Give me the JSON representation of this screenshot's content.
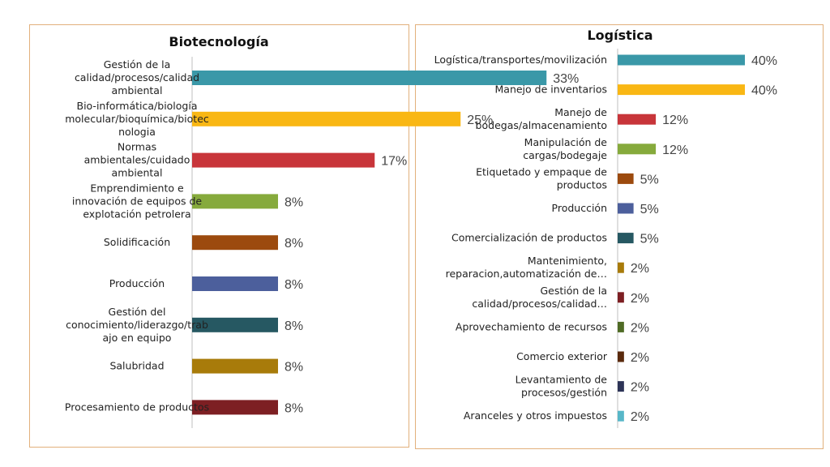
{
  "chart_data": [
    {
      "type": "bar",
      "orientation": "horizontal",
      "title": "Biotecnología",
      "categories": [
        [
          "Gestión de la",
          "calidad/procesos/calidad",
          "ambiental"
        ],
        [
          "Bio-informática/biología",
          "molecular/bioquímica/biotec",
          "nologia"
        ],
        [
          "Normas",
          "ambientales/cuidado",
          "ambiental"
        ],
        [
          "Emprendimiento e",
          "innovación de equipos de",
          "explotación petrolera"
        ],
        [
          "Solidificación"
        ],
        [
          "Producción"
        ],
        [
          "Gestión del",
          "conocimiento/liderazgo/trab",
          "ajo en equipo"
        ],
        [
          "Salubridad"
        ],
        [
          "Procesamiento de productos"
        ]
      ],
      "values": [
        33,
        25,
        17,
        8,
        8,
        8,
        8,
        8,
        8
      ],
      "value_labels": [
        "33%",
        "25%",
        "17%",
        "8%",
        "8%",
        "8%",
        "8%",
        "8%",
        "8%"
      ],
      "colors": [
        "#3a98a8",
        "#f9b714",
        "#c8353a",
        "#86aa3c",
        "#9c4a0e",
        "#4c5f9c",
        "#265862",
        "#a87b0a",
        "#7d1f23"
      ],
      "xlim": [
        0,
        40
      ],
      "grid": false,
      "legend": "none"
    },
    {
      "type": "bar",
      "orientation": "horizontal",
      "title": "Logística",
      "categories": [
        [
          "Logística/transportes/movilización"
        ],
        [
          "Manejo de inventarios"
        ],
        [
          "Manejo de",
          "bodegas/almacenamiento"
        ],
        [
          "Manipulación de",
          "cargas/bodegaje"
        ],
        [
          "Etiquetado y empaque de",
          "productos"
        ],
        [
          "Producción"
        ],
        [
          "Comercialización de productos"
        ],
        [
          "Mantenimiento,",
          "reparacion,automatización de…"
        ],
        [
          "Gestión de la",
          "calidad/procesos/calidad…"
        ],
        [
          "Aprovechamiento de recursos"
        ],
        [
          "Comercio exterior"
        ],
        [
          "Levantamiento de",
          "procesos/gestión"
        ],
        [
          "Aranceles y otros impuestos"
        ]
      ],
      "values": [
        40,
        40,
        12,
        12,
        5,
        5,
        5,
        2,
        2,
        2,
        2,
        2,
        2
      ],
      "value_labels": [
        "40%",
        "40%",
        "12%",
        "12%",
        "5%",
        "5%",
        "5%",
        "2%",
        "2%",
        "2%",
        "2%",
        "2%",
        "2%"
      ],
      "colors": [
        "#3a98a8",
        "#f9b714",
        "#c8353a",
        "#86aa3c",
        "#9c4a0e",
        "#4c5f9c",
        "#265862",
        "#a87b0a",
        "#7d1f23",
        "#4f6b25",
        "#5a2a0d",
        "#2d3457",
        "#57b7c8"
      ],
      "xlim": [
        0,
        40
      ],
      "grid": false,
      "legend": "none"
    }
  ]
}
